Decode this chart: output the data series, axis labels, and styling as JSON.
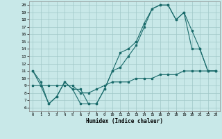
{
  "title": "",
  "xlabel": "Humidex (Indice chaleur)",
  "xlim": [
    -0.5,
    23.5
  ],
  "ylim": [
    5.5,
    20.5
  ],
  "xticks": [
    0,
    1,
    2,
    3,
    4,
    5,
    6,
    7,
    8,
    9,
    10,
    11,
    12,
    13,
    14,
    15,
    16,
    17,
    18,
    19,
    20,
    21,
    22,
    23
  ],
  "yticks": [
    6,
    7,
    8,
    9,
    10,
    11,
    12,
    13,
    14,
    15,
    16,
    17,
    18,
    19,
    20
  ],
  "background_color": "#c8e8e8",
  "grid_color": "#a0c8c8",
  "line_color": "#1a6b6b",
  "line1_x": [
    0,
    1,
    2,
    3,
    4,
    5,
    6,
    7,
    8,
    9,
    10,
    11,
    12,
    13,
    14,
    15,
    16,
    17,
    18,
    19,
    20,
    21,
    22,
    23
  ],
  "line1_y": [
    11,
    9,
    6.5,
    7.5,
    9.5,
    8.5,
    6.5,
    6.5,
    6.5,
    8.5,
    11.0,
    13.5,
    14.0,
    15.0,
    17.5,
    19.5,
    20.0,
    20.0,
    18.0,
    19.0,
    16.5,
    14.0,
    11.0,
    11.0
  ],
  "line2_x": [
    0,
    1,
    2,
    3,
    4,
    5,
    6,
    7,
    8,
    9,
    10,
    11,
    12,
    13,
    14,
    15,
    16,
    17,
    18,
    19,
    20,
    21,
    22,
    23
  ],
  "line2_y": [
    11,
    9.5,
    6.5,
    7.5,
    9.5,
    8.5,
    8.5,
    6.5,
    6.5,
    8.5,
    11.0,
    11.5,
    13.0,
    14.5,
    17.0,
    19.5,
    20.0,
    20.0,
    18.0,
    19.0,
    14.0,
    14.0,
    11.0,
    11.0
  ],
  "line3_x": [
    0,
    1,
    2,
    3,
    4,
    5,
    6,
    7,
    8,
    9,
    10,
    11,
    12,
    13,
    14,
    15,
    16,
    17,
    18,
    19,
    20,
    21,
    22,
    23
  ],
  "line3_y": [
    9.0,
    9.0,
    9.0,
    9.0,
    9.0,
    9.0,
    8.0,
    8.0,
    8.5,
    9.0,
    9.5,
    9.5,
    9.5,
    10.0,
    10.0,
    10.0,
    10.5,
    10.5,
    10.5,
    11.0,
    11.0,
    11.0,
    11.0,
    11.0
  ]
}
